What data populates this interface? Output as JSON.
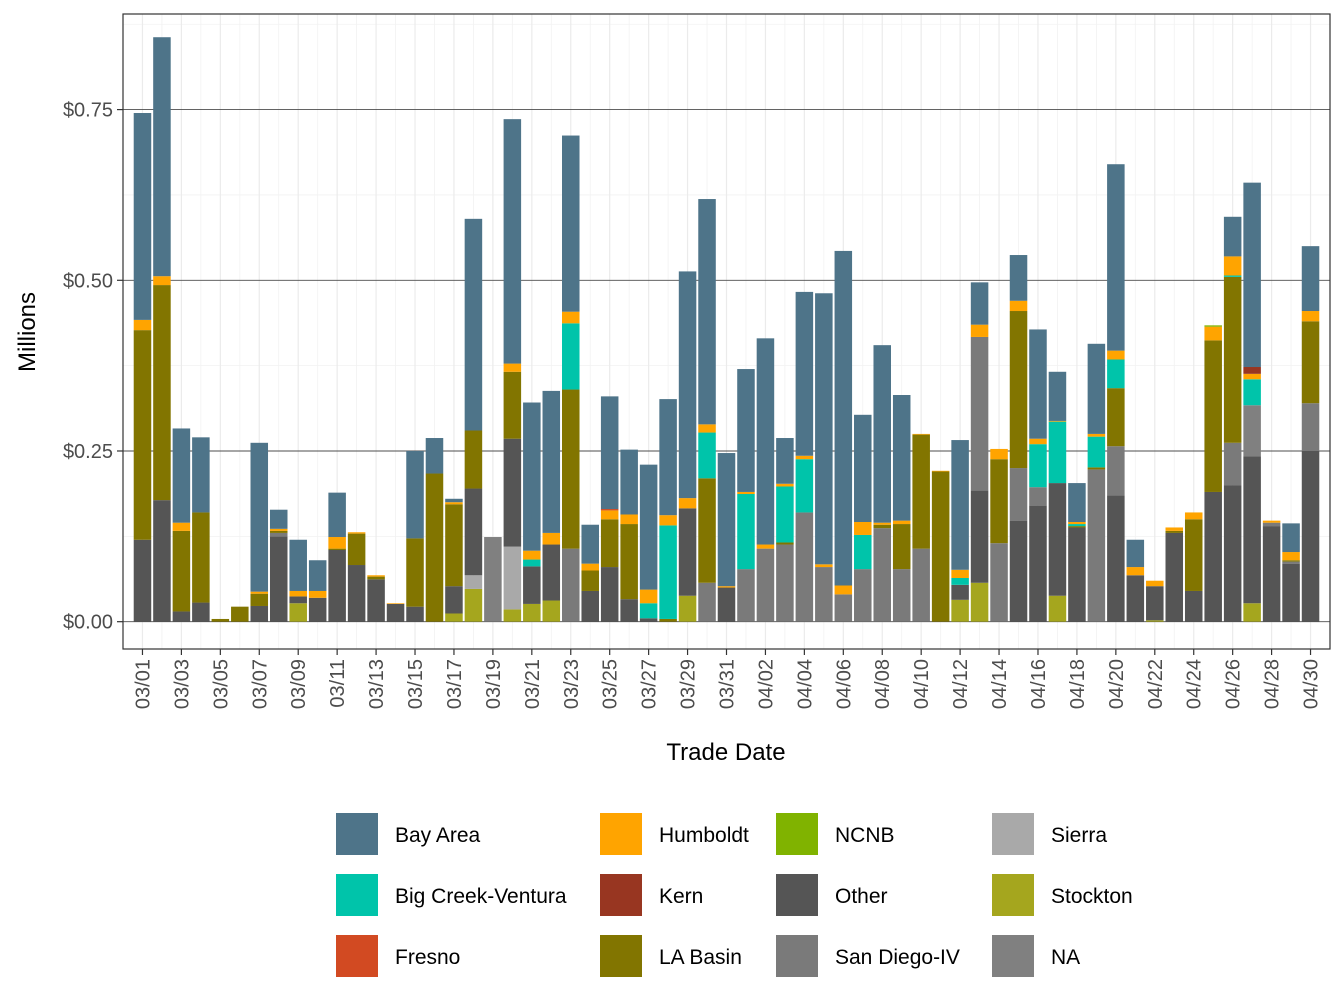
{
  "chart_data": {
    "type": "stacked-bar",
    "xlabel": "Trade Date",
    "ylabel": "Millions",
    "ylim": [
      -0.04,
      0.89
    ],
    "yticks": [
      0,
      0.25,
      0.5,
      0.75
    ],
    "ytick_labels": [
      "$0.00",
      "$0.25",
      "$0.50",
      "$0.75"
    ],
    "xtick_labels": [
      "03/01",
      "03/03",
      "03/05",
      "03/07",
      "03/09",
      "03/11",
      "03/13",
      "03/15",
      "03/17",
      "03/19",
      "03/21",
      "03/23",
      "03/25",
      "03/27",
      "03/29",
      "03/31",
      "04/02",
      "04/04",
      "04/06",
      "04/08",
      "04/10",
      "04/12",
      "04/14",
      "04/16",
      "04/18",
      "04/20",
      "04/22",
      "04/24",
      "04/26",
      "04/28",
      "04/30"
    ],
    "legend_position": "bottom",
    "legend_columns": 4,
    "series_order": [
      "Stockton",
      "Sierra",
      "Other",
      "San Diego-IV",
      "NA",
      "LA Basin",
      "Big Creek-Ventura",
      "Humboldt",
      "Kern",
      "NCNB",
      "Fresno",
      "Bay Area"
    ],
    "legend": [
      {
        "name": "Bay Area",
        "color": "#4E7489"
      },
      {
        "name": "Big Creek-Ventura",
        "color": "#00C4AA"
      },
      {
        "name": "Fresno",
        "color": "#D24A22"
      },
      {
        "name": "Humboldt",
        "color": "#FFA400"
      },
      {
        "name": "Kern",
        "color": "#983621"
      },
      {
        "name": "LA Basin",
        "color": "#827500"
      },
      {
        "name": "NCNB",
        "color": "#80B300"
      },
      {
        "name": "Other",
        "color": "#555555"
      },
      {
        "name": "San Diego-IV",
        "color": "#7A7A7A"
      },
      {
        "name": "Sierra",
        "color": "#A9A9A9"
      },
      {
        "name": "Stockton",
        "color": "#A5A61E"
      },
      {
        "name": "NA",
        "color": "#808080"
      }
    ],
    "categories": [
      "03/01",
      "03/02",
      "03/03",
      "03/04",
      "03/05",
      "03/06",
      "03/07",
      "03/08",
      "03/09",
      "03/10",
      "03/11",
      "03/12",
      "03/13",
      "03/14",
      "03/15",
      "03/16",
      "03/17",
      "03/18",
      "03/19",
      "03/20",
      "03/21",
      "03/22",
      "03/23",
      "03/24",
      "03/25",
      "03/26",
      "03/27",
      "03/28",
      "03/29",
      "03/30",
      "03/31",
      "04/01",
      "04/02",
      "04/03",
      "04/04",
      "04/05",
      "04/06",
      "04/07",
      "04/08",
      "04/09",
      "04/10",
      "04/11",
      "04/12",
      "04/13",
      "04/14",
      "04/15",
      "04/16",
      "04/17",
      "04/18",
      "04/19",
      "04/20",
      "04/21",
      "04/22",
      "04/23",
      "04/24",
      "04/25",
      "04/26",
      "04/27",
      "04/28",
      "04/29",
      "04/30"
    ],
    "series": [
      {
        "name": "Stockton",
        "values": [
          0,
          0,
          0,
          0,
          0,
          0,
          0,
          0,
          0.027,
          0,
          0,
          0,
          0,
          0,
          0,
          0,
          0.012,
          0.048,
          0,
          0.018,
          0.026,
          0.031,
          0,
          0,
          0,
          0,
          0,
          0,
          0.038,
          0,
          0,
          0,
          0,
          0,
          0,
          0,
          0,
          0,
          0,
          0,
          0,
          0,
          0.032,
          0.057,
          0,
          0,
          0,
          0.038,
          0,
          0,
          0,
          0,
          0.002,
          0,
          0,
          0,
          0,
          0.027,
          0,
          0,
          0
        ]
      },
      {
        "name": "Sierra",
        "values": [
          0,
          0,
          0,
          0,
          0,
          0,
          0,
          0,
          0,
          0,
          0,
          0,
          0,
          0,
          0,
          0,
          0,
          0.02,
          0,
          0.092,
          0,
          0,
          0,
          0,
          0,
          0,
          0,
          0,
          0,
          0,
          0,
          0,
          0,
          0,
          0,
          0,
          0,
          0,
          0,
          0,
          0,
          0,
          0,
          0,
          0,
          0,
          0,
          0,
          0,
          0,
          0,
          0,
          0,
          0,
          0,
          0,
          0,
          0,
          0,
          0,
          0
        ]
      },
      {
        "name": "Other",
        "values": [
          0.12,
          0.178,
          0.015,
          0.028,
          0,
          0,
          0.023,
          0.125,
          0.01,
          0.035,
          0.105,
          0.083,
          0.062,
          0.026,
          0.022,
          0,
          0.04,
          0.127,
          0,
          0.158,
          0.055,
          0.082,
          0,
          0.045,
          0.08,
          0.033,
          0.005,
          0,
          0.128,
          0,
          0.05,
          0,
          0,
          0,
          0,
          0,
          0,
          0,
          0,
          0,
          0,
          0,
          0.022,
          0.135,
          0,
          0.148,
          0.17,
          0.165,
          0.138,
          0,
          0.185,
          0.068,
          0.05,
          0.13,
          0.045,
          0.19,
          0.2,
          0.215,
          0.14,
          0.085,
          0.25
        ]
      },
      {
        "name": "San Diego-IV",
        "values": [
          0,
          0,
          0,
          0,
          0,
          0,
          0,
          0.005,
          0,
          0,
          0,
          0,
          0,
          0,
          0,
          0,
          0,
          0,
          0,
          0,
          0,
          0,
          0.107,
          0,
          0,
          0,
          0,
          0,
          0,
          0.057,
          0,
          0.077,
          0.107,
          0.113,
          0.16,
          0.08,
          0.04,
          0.077,
          0.137,
          0.077,
          0.107,
          0,
          0,
          0.225,
          0.115,
          0.077,
          0.027,
          0,
          0,
          0.223,
          0.072,
          0,
          0,
          0,
          0,
          0,
          0.062,
          0,
          0.005,
          0.003,
          0.07
        ]
      },
      {
        "name": "NA",
        "values": [
          0,
          0,
          0,
          0,
          0,
          0,
          0,
          0,
          0,
          0,
          0,
          0,
          0,
          0,
          0,
          0,
          0,
          0,
          0.124,
          0,
          0,
          0,
          0,
          0,
          0,
          0,
          0,
          0,
          0,
          0,
          0,
          0,
          0,
          0,
          0,
          0,
          0,
          0,
          0,
          0,
          0,
          0,
          0,
          0,
          0,
          0,
          0,
          0,
          0,
          0,
          0,
          0,
          0,
          0,
          0,
          0,
          0,
          0.075,
          0,
          0,
          0
        ]
      },
      {
        "name": "LA Basin",
        "values": [
          0.307,
          0.315,
          0.118,
          0.132,
          0.004,
          0.022,
          0.018,
          0.003,
          0,
          0,
          0.002,
          0.046,
          0.004,
          0,
          0.1,
          0.217,
          0.12,
          0.085,
          0,
          0.098,
          0,
          0,
          0.233,
          0.03,
          0.07,
          0.11,
          0,
          0.004,
          0,
          0.153,
          0,
          0,
          0,
          0.003,
          0,
          0,
          0,
          0,
          0.005,
          0.066,
          0.167,
          0.22,
          0,
          0,
          0.123,
          0.23,
          0,
          0,
          0.002,
          0.003,
          0.085,
          0,
          0,
          0.003,
          0.105,
          0.222,
          0.243,
          0,
          0,
          0.002,
          0.12
        ]
      },
      {
        "name": "Big Creek-Ventura",
        "values": [
          0,
          0,
          0,
          0,
          0,
          0,
          0,
          0,
          0,
          0,
          0,
          0,
          0,
          0,
          0,
          0,
          0,
          0,
          0,
          0,
          0.01,
          0,
          0.097,
          0,
          0,
          0,
          0.022,
          0.137,
          0,
          0.067,
          0,
          0.11,
          0,
          0.082,
          0.078,
          0,
          0,
          0.05,
          0,
          0,
          0,
          0,
          0.01,
          0,
          0,
          0,
          0.063,
          0.09,
          0.003,
          0.045,
          0.042,
          0,
          0,
          0,
          0,
          0,
          0.002,
          0.038,
          0,
          0,
          0
        ]
      },
      {
        "name": "Humboldt",
        "values": [
          0.015,
          0.013,
          0.012,
          0,
          0,
          0,
          0.003,
          0.003,
          0.008,
          0.01,
          0.017,
          0.002,
          0.002,
          0.001,
          0,
          0,
          0.003,
          0,
          0,
          0.012,
          0.013,
          0.017,
          0.017,
          0.01,
          0.013,
          0.014,
          0.02,
          0.015,
          0.015,
          0.012,
          0.002,
          0.003,
          0.006,
          0.004,
          0.005,
          0.004,
          0.013,
          0.019,
          0.003,
          0.005,
          0.001,
          0.001,
          0.012,
          0.018,
          0.015,
          0.015,
          0.008,
          0.001,
          0.003,
          0.004,
          0.013,
          0.012,
          0.008,
          0.005,
          0.01,
          0.02,
          0.028,
          0.008,
          0.003,
          0.012,
          0.015
        ]
      },
      {
        "name": "Kern",
        "values": [
          0,
          0,
          0,
          0,
          0,
          0,
          0,
          0,
          0,
          0,
          0,
          0,
          0,
          0,
          0,
          0,
          0,
          0,
          0,
          0,
          0,
          0,
          0,
          0,
          0,
          0,
          0,
          0,
          0,
          0,
          0,
          0,
          0,
          0,
          0,
          0,
          0,
          0,
          0,
          0,
          0,
          0,
          0,
          0,
          0,
          0,
          0,
          0,
          0,
          0,
          0,
          0,
          0,
          0,
          0,
          0,
          0,
          0.01,
          0,
          0,
          0
        ]
      },
      {
        "name": "NCNB",
        "values": [
          0,
          0,
          0,
          0,
          0,
          0,
          0,
          0,
          0,
          0,
          0,
          0,
          0,
          0,
          0,
          0,
          0,
          0,
          0,
          0,
          0,
          0,
          0,
          0,
          0,
          0,
          0,
          0,
          0,
          0,
          0,
          0,
          0,
          0,
          0,
          0,
          0,
          0,
          0,
          0,
          0,
          0,
          0,
          0,
          0,
          0,
          0,
          0,
          0,
          0,
          0,
          0,
          0,
          0,
          0,
          0.002,
          0,
          0,
          0,
          0,
          0
        ]
      },
      {
        "name": "Fresno",
        "values": [
          0,
          0,
          0,
          0,
          0,
          0,
          0,
          0,
          0,
          0,
          0,
          0,
          0,
          0,
          0,
          0,
          0,
          0,
          0,
          0,
          0,
          0,
          0,
          0,
          0.002,
          0,
          0,
          0,
          0,
          0,
          0,
          0,
          0,
          0,
          0,
          0,
          0,
          0,
          0,
          0,
          0,
          0,
          0,
          0,
          0,
          0,
          0,
          0,
          0,
          0,
          0,
          0,
          0,
          0,
          0,
          0,
          0,
          0,
          0,
          0,
          0
        ]
      },
      {
        "name": "Bay Area",
        "values": [
          0.303,
          0.35,
          0.138,
          0.11,
          0,
          0,
          0.218,
          0.028,
          0.075,
          0.045,
          0.065,
          0,
          0,
          0,
          0.128,
          0.052,
          0.005,
          0.31,
          0,
          0.358,
          0.217,
          0.208,
          0.258,
          0.057,
          0.165,
          0.095,
          0.183,
          0.17,
          0.332,
          0.33,
          0.195,
          0.18,
          0.302,
          0.067,
          0.24,
          0.397,
          0.49,
          0.157,
          0.26,
          0.184,
          0,
          0,
          0.19,
          0.062,
          0,
          0.067,
          0.16,
          0.072,
          0.057,
          0.132,
          0.273,
          0.04,
          0,
          0,
          0,
          0,
          0.058,
          0.27,
          0,
          0.042,
          0.095
        ]
      }
    ]
  }
}
